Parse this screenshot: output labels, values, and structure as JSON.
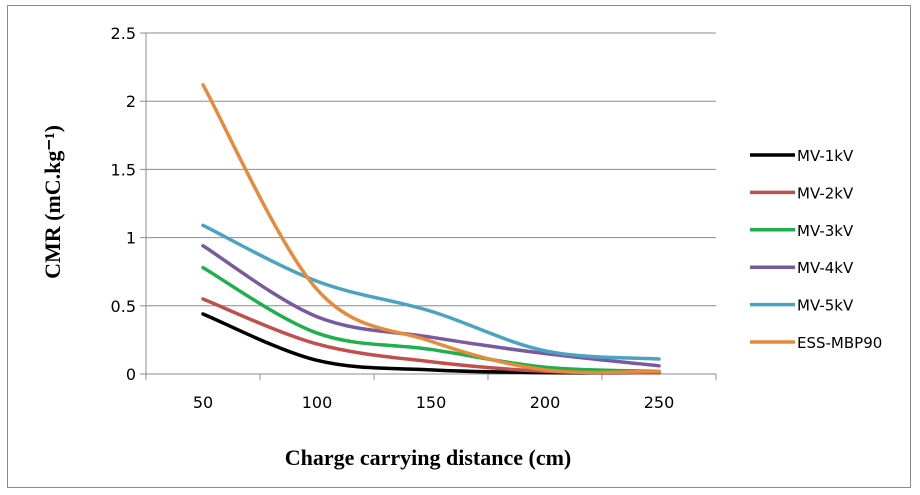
{
  "chart_data": {
    "type": "line",
    "xlabel": "Charge carrying distance (cm)",
    "ylabel": "CMR (mC.kg⁻¹)",
    "x_ticks": [
      "50",
      "100",
      "150",
      "200",
      "250"
    ],
    "y_ticks": [
      "0",
      "0.5",
      "1",
      "1.5",
      "2",
      "2.5"
    ],
    "xlim": [
      25,
      275
    ],
    "ylim": [
      0,
      2.5
    ],
    "grid": "horizontal",
    "legend": "right",
    "x": [
      50,
      100,
      150,
      200,
      250
    ],
    "series": [
      {
        "name": "MV-1kV",
        "color": "#000000",
        "values": [
          0.44,
          0.1,
          0.03,
          0.01,
          0.01
        ]
      },
      {
        "name": "MV-2kV",
        "color": "#c0504d",
        "values": [
          0.55,
          0.22,
          0.09,
          0.02,
          0.01
        ]
      },
      {
        "name": "MV-3kV",
        "color": "#1fb04d",
        "values": [
          0.78,
          0.3,
          0.18,
          0.05,
          0.02
        ]
      },
      {
        "name": "MV-4kV",
        "color": "#7a5a9e",
        "values": [
          0.94,
          0.42,
          0.27,
          0.15,
          0.06
        ]
      },
      {
        "name": "MV-5kV",
        "color": "#4ba3c3",
        "values": [
          1.09,
          0.68,
          0.46,
          0.17,
          0.11
        ]
      },
      {
        "name": "ESS-MBP90",
        "color": "#e68a3c",
        "values": [
          2.12,
          0.62,
          0.24,
          0.03,
          0.02
        ]
      }
    ]
  }
}
